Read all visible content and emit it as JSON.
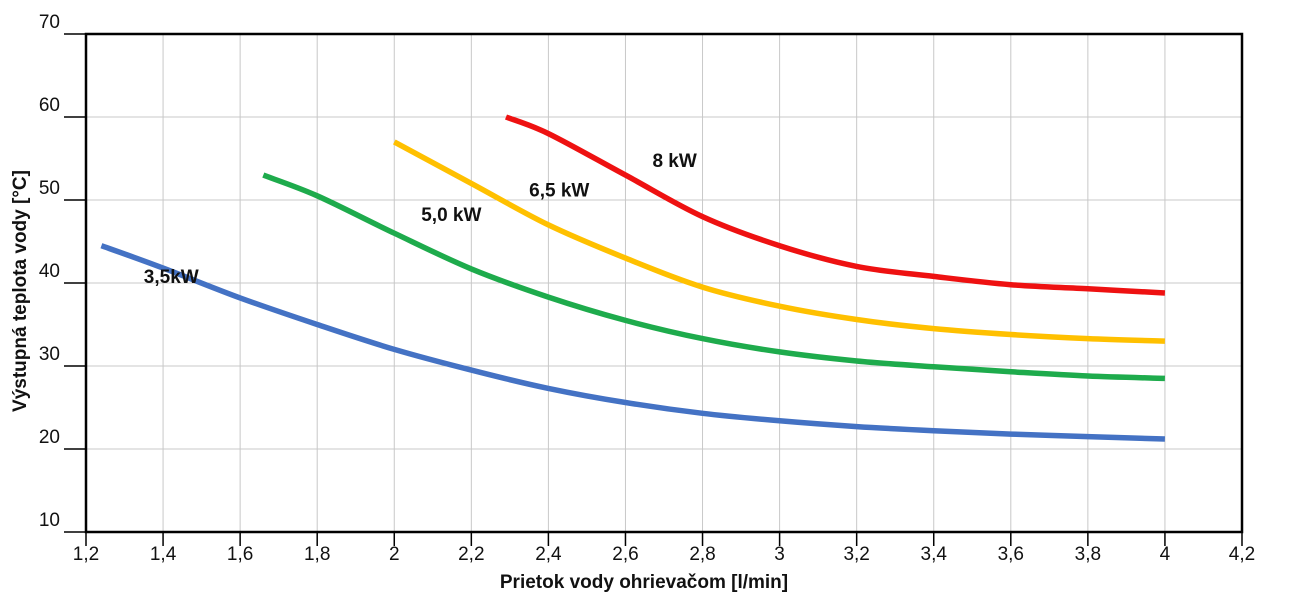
{
  "chart_data": {
    "type": "line",
    "xlabel": "Prietok vody ohrievačom [l/min]",
    "ylabel": "Výstupná teplota vody [°C]",
    "xlim": [
      1.2,
      4.2
    ],
    "ylim": [
      10,
      70
    ],
    "x_ticks": [
      "1,2",
      "1,4",
      "1,6",
      "1,8",
      "2",
      "2,2",
      "2,4",
      "2,6",
      "2,8",
      "3",
      "3,2",
      "3,4",
      "3,6",
      "3,8",
      "4",
      "4,2"
    ],
    "y_ticks": [
      "10",
      "20",
      "30",
      "40",
      "50",
      "60",
      "70"
    ],
    "grid": true,
    "legend": "none",
    "series": [
      {
        "name": "3,5kW",
        "color": "#4472C4",
        "label_at": [
          1.35,
          40
        ],
        "points": [
          [
            1.24,
            44.5
          ],
          [
            1.4,
            41.8
          ],
          [
            1.6,
            38.2
          ],
          [
            1.8,
            35.0
          ],
          [
            2.0,
            32.0
          ],
          [
            2.2,
            29.5
          ],
          [
            2.4,
            27.3
          ],
          [
            2.6,
            25.6
          ],
          [
            2.8,
            24.3
          ],
          [
            3.0,
            23.4
          ],
          [
            3.2,
            22.7
          ],
          [
            3.4,
            22.2
          ],
          [
            3.6,
            21.8
          ],
          [
            3.8,
            21.5
          ],
          [
            4.0,
            21.2
          ]
        ]
      },
      {
        "name": "5,0 kW",
        "color": "#1EAB4C",
        "label_at": [
          2.07,
          47.5
        ],
        "points": [
          [
            1.66,
            53.0
          ],
          [
            1.8,
            50.5
          ],
          [
            2.0,
            46.0
          ],
          [
            2.2,
            41.7
          ],
          [
            2.4,
            38.3
          ],
          [
            2.6,
            35.5
          ],
          [
            2.8,
            33.3
          ],
          [
            3.0,
            31.7
          ],
          [
            3.2,
            30.6
          ],
          [
            3.4,
            29.9
          ],
          [
            3.6,
            29.3
          ],
          [
            3.8,
            28.8
          ],
          [
            4.0,
            28.5
          ]
        ]
      },
      {
        "name": "6,5 kW",
        "color": "#FFC000",
        "label_at": [
          2.35,
          50.4
        ],
        "points": [
          [
            2.0,
            57.0
          ],
          [
            2.2,
            52.0
          ],
          [
            2.4,
            47.0
          ],
          [
            2.6,
            43.0
          ],
          [
            2.8,
            39.5
          ],
          [
            3.0,
            37.2
          ],
          [
            3.2,
            35.6
          ],
          [
            3.4,
            34.5
          ],
          [
            3.6,
            33.8
          ],
          [
            3.8,
            33.3
          ],
          [
            4.0,
            33.0
          ]
        ]
      },
      {
        "name": "8 kW",
        "color": "#EE1111",
        "label_at": [
          2.67,
          54.0
        ],
        "points": [
          [
            2.29,
            60.0
          ],
          [
            2.4,
            58.0
          ],
          [
            2.6,
            53.0
          ],
          [
            2.8,
            48.0
          ],
          [
            3.0,
            44.5
          ],
          [
            3.2,
            42.0
          ],
          [
            3.4,
            40.8
          ],
          [
            3.6,
            39.8
          ],
          [
            3.8,
            39.3
          ],
          [
            4.0,
            38.8
          ]
        ]
      }
    ]
  }
}
